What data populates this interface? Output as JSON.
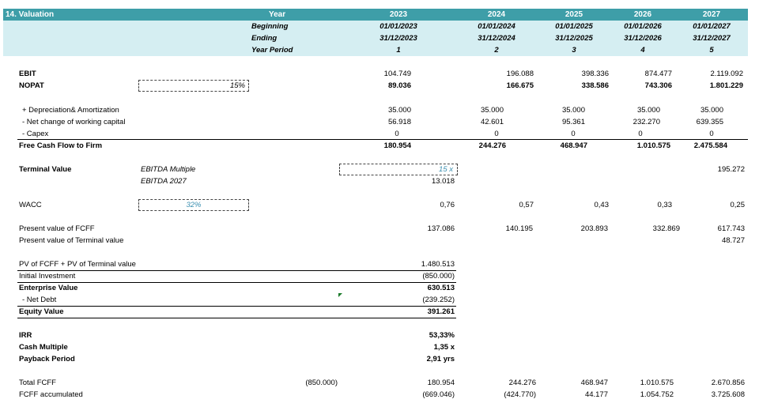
{
  "section_title": "14. Valuation",
  "header": {
    "year_label": "Year",
    "beginning_label": "Beginning",
    "ending_label": "Ending",
    "period_label": "Year Period",
    "years": [
      "2023",
      "2024",
      "2025",
      "2026",
      "2027"
    ],
    "beginning": [
      "01/01/2023",
      "01/01/2024",
      "01/01/2025",
      "01/01/2026",
      "01/01/2027"
    ],
    "ending": [
      "31/12/2023",
      "31/12/2024",
      "31/12/2025",
      "31/12/2026",
      "31/12/2027"
    ],
    "periods": [
      "1",
      "2",
      "3",
      "4",
      "5"
    ]
  },
  "ebit": {
    "label": "EBIT",
    "values": [
      "104.749",
      "196.088",
      "398.336",
      "874.477",
      "2.119.092"
    ]
  },
  "nopat": {
    "label": "NOPAT",
    "tax_rate": "15%",
    "values": [
      "89.036",
      "166.675",
      "338.586",
      "743.306",
      "1.801.229"
    ]
  },
  "depreciation": {
    "label": "+ Depreciation& Amortization",
    "values": [
      "35.000",
      "35.000",
      "35.000",
      "35.000",
      "35.000"
    ]
  },
  "working_capital": {
    "label": "- Net change of working capital",
    "values": [
      "56.918",
      "42.601",
      "95.361",
      "232.270",
      "639.355"
    ]
  },
  "capex": {
    "label": "- Capex",
    "values": [
      "0",
      "0",
      "0",
      "0",
      "0"
    ]
  },
  "fcff": {
    "label": "Free Cash Flow to Firm",
    "values": [
      "180.954",
      "244.276",
      "468.947",
      "1.010.575",
      "2.475.584"
    ]
  },
  "terminal_value": {
    "label": "Terminal Value",
    "multiple_label": "EBITDA Multiple",
    "ebitda_label": "EBITDA 2027",
    "multiple": "15 x",
    "ebitda": "13.018",
    "value_2027": "195.272"
  },
  "wacc": {
    "label": "WACC",
    "rate": "32%",
    "values": [
      "0,76",
      "0,57",
      "0,43",
      "0,33",
      "0,25"
    ]
  },
  "pv_fcff": {
    "label": "Present value of FCFF",
    "values": [
      "137.086",
      "140.195",
      "203.893",
      "332.869",
      "617.743"
    ]
  },
  "pv_terminal": {
    "label": "Present value of Terminal value",
    "value_2027": "48.727"
  },
  "summary": {
    "pv_total_label": "PV of FCFF + PV of Terminal value",
    "pv_total": "1.480.513",
    "initial_investment_label": "Initial Investment",
    "initial_investment": "(850.000)",
    "enterprise_value_label": "Enterprise Value",
    "enterprise_value": "630.513",
    "net_debt_label": "- Net Debt",
    "net_debt": "(239.252)",
    "equity_value_label": "Equity Value",
    "equity_value": "391.261"
  },
  "returns": {
    "irr_label": "IRR",
    "irr": "53,33%",
    "cash_multiple_label": "Cash Multiple",
    "cash_multiple": "1,35 x",
    "payback_label": "Payback Period",
    "payback": "2,91 yrs"
  },
  "total_fcff": {
    "label": "Total FCFF",
    "initial": "(850.000)",
    "values": [
      "180.954",
      "244.276",
      "468.947",
      "1.010.575",
      "2.670.856"
    ]
  },
  "fcff_accumulated": {
    "label": "FCFF accumulated",
    "values": [
      "(669.046)",
      "(424.770)",
      "44.177",
      "1.054.752",
      "3.725.608"
    ]
  }
}
